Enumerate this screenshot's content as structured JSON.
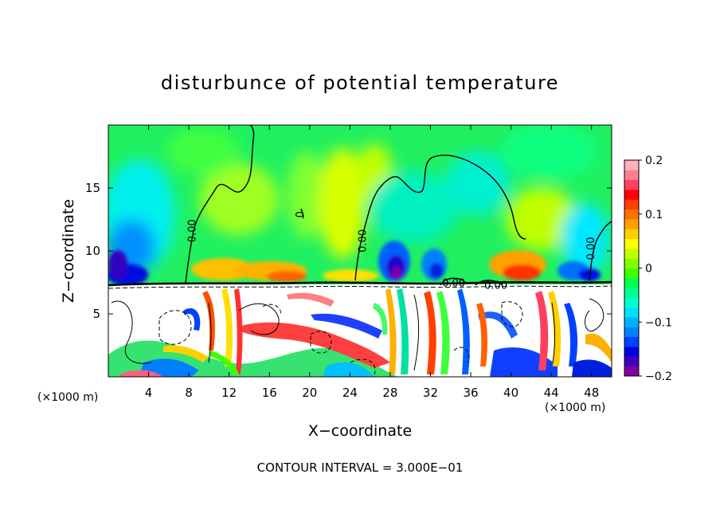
{
  "chart_data": {
    "type": "heatmap",
    "title": "disturbunce of potential temperature",
    "xlabel": "X−coordinate",
    "ylabel": "Z−coordinate",
    "x_unit": "(×1000 m)",
    "x_unit_right": "(×1000 m)",
    "footer": "CONTOUR INTERVAL = 3.000E−01",
    "xlim": [
      0,
      50
    ],
    "ylim": [
      0,
      20
    ],
    "x_ticks": [
      4,
      8,
      12,
      16,
      20,
      24,
      28,
      32,
      36,
      40,
      44,
      48
    ],
    "x_tick_labels": [
      "4",
      "8",
      "12",
      "16",
      "20",
      "24",
      "28",
      "32",
      "36",
      "40",
      "44",
      "48"
    ],
    "y_ticks": [
      5,
      10,
      15
    ],
    "y_tick_labels": [
      "5",
      "10",
      "15"
    ],
    "colorbar": {
      "min": -0.2,
      "max": 0.2,
      "ticks": [
        0.2,
        0.1,
        0,
        -0.1,
        -0.2
      ],
      "tick_labels": [
        "0.2",
        "0.1",
        "0",
        "−0.1",
        "−0.2"
      ],
      "colors": [
        "#8000a0",
        "#4000c0",
        "#0000e0",
        "#0040ff",
        "#0080ff",
        "#00b0ff",
        "#00e0ff",
        "#00ffd0",
        "#00ff90",
        "#00ff50",
        "#40ff00",
        "#80ff00",
        "#c0ff00",
        "#ffff00",
        "#ffd000",
        "#ffa000",
        "#ff7000",
        "#ff4000",
        "#ff0000",
        "#ff4060",
        "#ff8090",
        "#ffb0b8"
      ]
    },
    "contour_labels": [
      {
        "text": "0.00",
        "x": 8.4,
        "z": 11.6,
        "rotate": -90
      },
      {
        "text": "0.00",
        "x": 25.3,
        "z": 10.8,
        "rotate": -90
      },
      {
        "text": "0.00",
        "x": 48.0,
        "z": 10.2,
        "rotate": -90
      },
      {
        "text": "0.00",
        "x": 34.3,
        "z": 7.4,
        "rotate": 0
      },
      {
        "text": "0.00",
        "x": 38.5,
        "z": 7.2,
        "rotate": 0
      },
      {
        "text": "0",
        "x": 19.1,
        "z": 12.9,
        "rotate": -90
      }
    ],
    "tropopause_z": 7.3
  }
}
